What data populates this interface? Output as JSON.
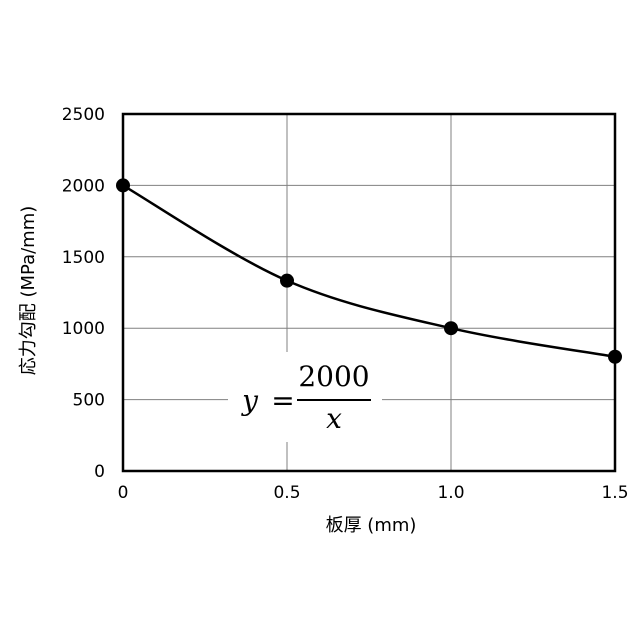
{
  "chart_data": {
    "type": "scatter",
    "xlabel": "板厚 (mm)",
    "ylabel": "応力勾配 (MPa/mm)",
    "xlim": [
      0,
      1.5
    ],
    "ylim": [
      0,
      2500
    ],
    "x_ticks": [
      "0",
      "0.5",
      "1.0",
      "1.5"
    ],
    "y_ticks": [
      "0",
      "500",
      "1000",
      "1500",
      "2000",
      "2500"
    ],
    "grid": true,
    "points": [
      {
        "x": 0,
        "y": 2000
      },
      {
        "x": 0.5,
        "y": 1333
      },
      {
        "x": 1.0,
        "y": 1000
      },
      {
        "x": 1.5,
        "y": 800
      }
    ],
    "curve": {
      "type": "fit",
      "style": "solid black line through points"
    },
    "annotation": {
      "lhs": "y",
      "equals": "=",
      "numerator": "2000",
      "denominator": "x"
    },
    "colors": {
      "marker": "#000000",
      "line": "#000000",
      "grid": "#808080"
    }
  }
}
